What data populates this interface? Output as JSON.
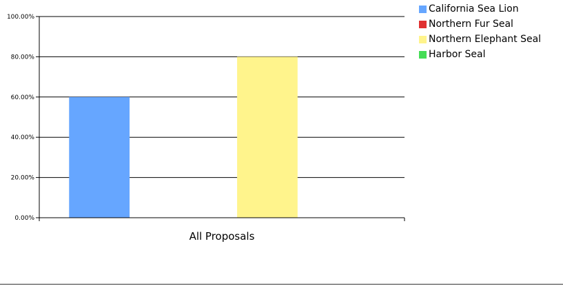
{
  "chart_data": {
    "type": "bar",
    "categories": [
      "All Proposals"
    ],
    "series": [
      {
        "name": "California Sea Lion",
        "color": "#66A6FF",
        "values": [
          60
        ]
      },
      {
        "name": "Northern Fur Seal",
        "color": "#E03030",
        "values": [
          0
        ]
      },
      {
        "name": "Northern Elephant Seal",
        "color": "#FFF48C",
        "values": [
          80
        ]
      },
      {
        "name": "Harbor Seal",
        "color": "#44DD55",
        "values": [
          0
        ]
      }
    ],
    "title": "",
    "xlabel": "",
    "ylabel": "",
    "ylim": [
      0,
      100
    ],
    "yticks": [
      "0.00%",
      "20.00%",
      "40.00%",
      "60.00%",
      "80.00%",
      "100.00%"
    ],
    "grid": true,
    "legend_position": "top-right"
  }
}
